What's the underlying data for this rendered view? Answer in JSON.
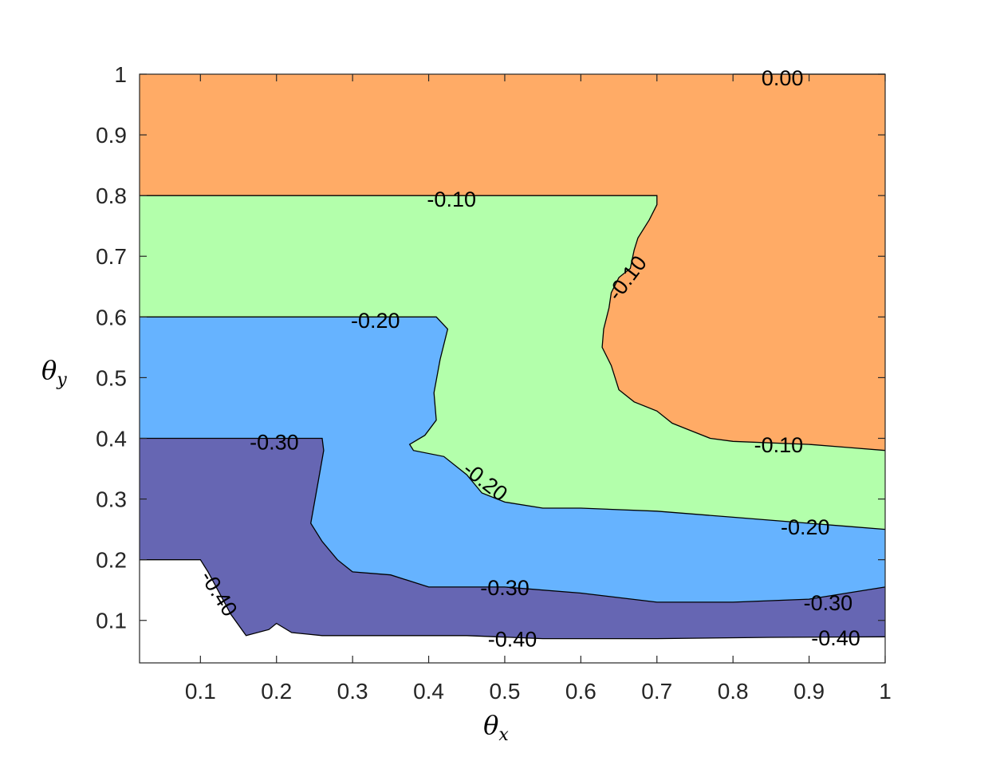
{
  "chart_data": {
    "type": "contour",
    "xlabel": "θx",
    "ylabel": "θy",
    "xlim": [
      0.02,
      1.0
    ],
    "ylim": [
      0.03,
      1.0
    ],
    "xticks": [
      "0.1",
      "0.2",
      "0.3",
      "0.4",
      "0.5",
      "0.6",
      "0.7",
      "0.8",
      "0.9",
      "1"
    ],
    "yticks": [
      "0.1",
      "0.2",
      "0.3",
      "0.4",
      "0.5",
      "0.6",
      "0.7",
      "0.8",
      "0.9",
      "1"
    ],
    "levels": [
      -0.4,
      -0.3,
      -0.2,
      -0.1,
      0.0
    ],
    "fill_colors": {
      "below_-0.40": "#ffffff",
      "-0.40_to_-0.30": "#6666b3",
      "-0.30_to_-0.20": "#66b3ff",
      "-0.20_to_-0.10": "#b3ffab",
      "-0.10_to_0.00": "#ffab66"
    },
    "contours": [
      {
        "level": -0.1,
        "label": "-0.10",
        "points": [
          [
            0.02,
            0.8
          ],
          [
            0.7,
            0.8
          ],
          [
            0.7,
            0.785
          ],
          [
            0.69,
            0.76
          ],
          [
            0.675,
            0.73
          ],
          [
            0.67,
            0.71
          ],
          [
            0.665,
            0.68
          ],
          [
            0.65,
            0.665
          ],
          [
            0.64,
            0.64
          ],
          [
            0.637,
            0.615
          ],
          [
            0.63,
            0.58
          ],
          [
            0.628,
            0.55
          ],
          [
            0.64,
            0.52
          ],
          [
            0.65,
            0.48
          ],
          [
            0.67,
            0.46
          ],
          [
            0.7,
            0.445
          ],
          [
            0.72,
            0.425
          ],
          [
            0.74,
            0.415
          ],
          [
            0.77,
            0.4
          ],
          [
            0.8,
            0.395
          ],
          [
            0.9,
            0.39
          ],
          [
            0.95,
            0.385
          ],
          [
            1.0,
            0.38
          ]
        ]
      },
      {
        "level": -0.2,
        "label": "-0.20",
        "points": [
          [
            0.02,
            0.6
          ],
          [
            0.41,
            0.6
          ],
          [
            0.425,
            0.58
          ],
          [
            0.415,
            0.53
          ],
          [
            0.407,
            0.475
          ],
          [
            0.41,
            0.43
          ],
          [
            0.395,
            0.405
          ],
          [
            0.375,
            0.39
          ],
          [
            0.38,
            0.38
          ],
          [
            0.42,
            0.37
          ],
          [
            0.45,
            0.34
          ],
          [
            0.47,
            0.31
          ],
          [
            0.5,
            0.295
          ],
          [
            0.55,
            0.285
          ],
          [
            0.6,
            0.285
          ],
          [
            0.7,
            0.28
          ],
          [
            0.8,
            0.27
          ],
          [
            0.9,
            0.26
          ],
          [
            0.95,
            0.255
          ],
          [
            1.0,
            0.25
          ]
        ]
      },
      {
        "level": -0.3,
        "label": "-0.30",
        "points": [
          [
            0.02,
            0.4
          ],
          [
            0.26,
            0.4
          ],
          [
            0.262,
            0.38
          ],
          [
            0.255,
            0.33
          ],
          [
            0.245,
            0.26
          ],
          [
            0.26,
            0.23
          ],
          [
            0.28,
            0.2
          ],
          [
            0.3,
            0.18
          ],
          [
            0.35,
            0.175
          ],
          [
            0.4,
            0.155
          ],
          [
            0.5,
            0.155
          ],
          [
            0.6,
            0.145
          ],
          [
            0.7,
            0.13
          ],
          [
            0.8,
            0.13
          ],
          [
            0.9,
            0.135
          ],
          [
            1.0,
            0.155
          ]
        ]
      },
      {
        "level": -0.4,
        "label": "-0.40",
        "points": [
          [
            0.02,
            0.2
          ],
          [
            0.1,
            0.2
          ],
          [
            0.11,
            0.18
          ],
          [
            0.14,
            0.11
          ],
          [
            0.16,
            0.075
          ],
          [
            0.19,
            0.085
          ],
          [
            0.2,
            0.095
          ],
          [
            0.22,
            0.08
          ],
          [
            0.26,
            0.075
          ],
          [
            0.35,
            0.075
          ],
          [
            0.45,
            0.075
          ],
          [
            0.55,
            0.07
          ],
          [
            0.7,
            0.07
          ],
          [
            0.85,
            0.072
          ],
          [
            1.0,
            0.073
          ]
        ]
      },
      {
        "level": 0.0,
        "label": "0.00",
        "points": [
          [
            0.8,
            1.0
          ],
          [
            1.0,
            1.0
          ]
        ]
      }
    ],
    "contour_labels": [
      {
        "text": "0.00",
        "x": 0.865,
        "y": 0.995,
        "rotation": 0
      },
      {
        "text": "-0.10",
        "x": 0.43,
        "y": 0.795,
        "rotation": 0
      },
      {
        "text": "-0.10",
        "x": 0.66,
        "y": 0.665,
        "rotation": -53
      },
      {
        "text": "-0.10",
        "x": 0.86,
        "y": 0.39,
        "rotation": 0
      },
      {
        "text": "-0.20",
        "x": 0.33,
        "y": 0.595,
        "rotation": 0
      },
      {
        "text": "-0.20",
        "x": 0.475,
        "y": 0.33,
        "rotation": 38
      },
      {
        "text": "-0.20",
        "x": 0.895,
        "y": 0.255,
        "rotation": 0
      },
      {
        "text": "-0.30",
        "x": 0.197,
        "y": 0.395,
        "rotation": 0
      },
      {
        "text": "-0.30",
        "x": 0.5,
        "y": 0.155,
        "rotation": 0
      },
      {
        "text": "-0.30",
        "x": 0.925,
        "y": 0.13,
        "rotation": 0
      },
      {
        "text": "-0.40",
        "x": 0.125,
        "y": 0.145,
        "rotation": 58
      },
      {
        "text": "-0.40",
        "x": 0.51,
        "y": 0.07,
        "rotation": 0
      },
      {
        "text": "-0.40",
        "x": 0.935,
        "y": 0.072,
        "rotation": 0
      }
    ],
    "grid": false
  }
}
